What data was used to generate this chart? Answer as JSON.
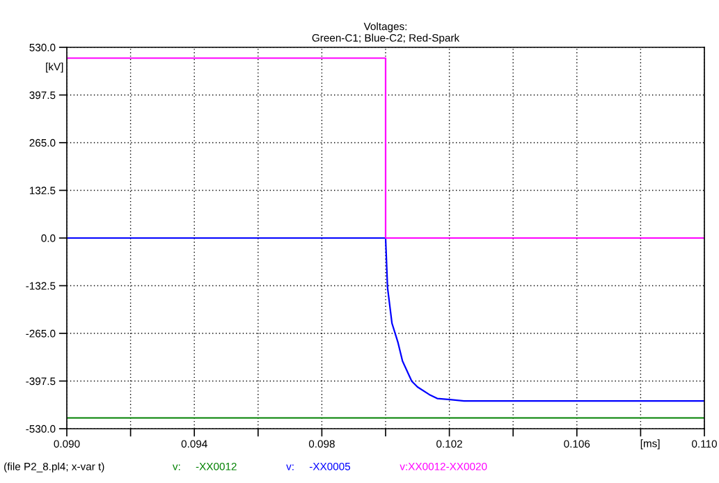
{
  "chart_data": {
    "type": "line",
    "title": "Voltages:\nGreen-C1; Blue-C2; Red-Spark",
    "xlabel": "[ms]",
    "ylabel": "[kV]",
    "annotations": [
      "(file P2_8.pl4; x-var t)"
    ],
    "series": [
      {
        "name": "v:     -XX0012",
        "color": "#008000",
        "x": [
          0.09,
          0.11
        ],
        "values": [
          -500,
          -500
        ]
      },
      {
        "name": "v:     -XX0005",
        "color": "#0000ff",
        "x": [
          0.09,
          0.1,
          0.10006,
          0.1002,
          0.10039,
          0.10053,
          0.10082,
          0.101,
          0.10137,
          0.10162,
          0.10202,
          0.10246,
          0.11
        ],
        "values": [
          0,
          0,
          -137,
          -237,
          -291,
          -342,
          -398,
          -414,
          -435,
          -446,
          -449,
          -453,
          -453
        ]
      },
      {
        "name": "v:XX0012-XX0020",
        "color": "#ff00ff",
        "x": [
          0.09,
          0.1,
          0.1,
          0.11
        ],
        "values": [
          500,
          500,
          0,
          0
        ]
      }
    ],
    "xlim": [
      0.09,
      0.11
    ],
    "xticks": [
      {
        "value": 0.09,
        "label": "0.090"
      },
      {
        "value": 0.092,
        "label": null
      },
      {
        "value": 0.094,
        "label": "0.094"
      },
      {
        "value": 0.096,
        "label": null
      },
      {
        "value": 0.098,
        "label": "0.098"
      },
      {
        "value": 0.1,
        "label": null
      },
      {
        "value": 0.102,
        "label": "0.102"
      },
      {
        "value": 0.104,
        "label": null
      },
      {
        "value": 0.106,
        "label": "0.106"
      },
      {
        "value": 0.108,
        "label": null
      },
      {
        "value": 0.11,
        "label": "0.110"
      }
    ],
    "ylim": [
      -530,
      530
    ],
    "yticks": [
      {
        "value": -530,
        "label": "-530.0"
      },
      {
        "value": -397.5,
        "label": "-397.5"
      },
      {
        "value": -265,
        "label": "-265.0"
      },
      {
        "value": -132.5,
        "label": "-132.5"
      },
      {
        "value": 0,
        "label": "0.0"
      },
      {
        "value": 132.5,
        "label": "132.5"
      },
      {
        "value": 265,
        "label": "265.0"
      },
      {
        "value": 397.5,
        "label": "397.5"
      },
      {
        "value": 530,
        "label": "530.0"
      }
    ],
    "grid": true,
    "legend": "bottom",
    "marker": "none",
    "line_style": "solid"
  }
}
